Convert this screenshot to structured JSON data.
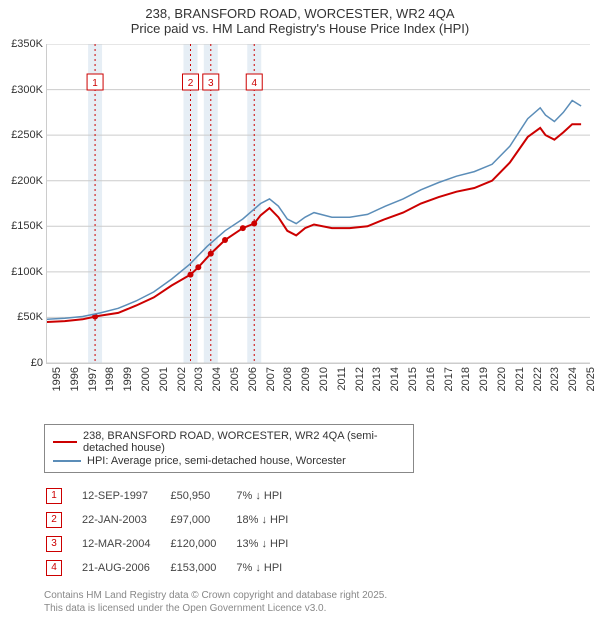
{
  "title": {
    "line1": "238, BRANSFORD ROAD, WORCESTER, WR2 4QA",
    "line2": "Price paid vs. HM Land Registry's House Price Index (HPI)"
  },
  "chart": {
    "type": "line",
    "background_color": "#ffffff",
    "grid_color": "#cccccc",
    "band_color": "#e6eef5",
    "marker_vline_color": "#cc0000",
    "marker_vline_dash": "2,3",
    "xlim": [
      1995,
      2025.5
    ],
    "ylim": [
      0,
      350000
    ],
    "ytick_step": 50000,
    "ytick_labels": [
      "£0",
      "£50K",
      "£100K",
      "£150K",
      "£200K",
      "£250K",
      "£300K",
      "£350K"
    ],
    "xticks": [
      1995,
      1996,
      1997,
      1998,
      1999,
      2000,
      2001,
      2002,
      2003,
      2004,
      2005,
      2006,
      2007,
      2008,
      2009,
      2010,
      2011,
      2012,
      2013,
      2014,
      2015,
      2016,
      2017,
      2018,
      2019,
      2020,
      2021,
      2022,
      2023,
      2024,
      2025
    ],
    "event_bands": [
      {
        "x": 1997.7,
        "label": "1"
      },
      {
        "x": 2003.06,
        "label": "2"
      },
      {
        "x": 2004.2,
        "label": "3"
      },
      {
        "x": 2006.64,
        "label": "4"
      }
    ],
    "series": [
      {
        "name": "price_paid",
        "label": "238, BRANSFORD ROAD, WORCESTER, WR2 4QA (semi-detached house)",
        "color": "#cc0000",
        "line_width": 2,
        "points": [
          [
            1995,
            45000
          ],
          [
            1996,
            46000
          ],
          [
            1997,
            48000
          ],
          [
            1997.7,
            50950
          ],
          [
            1998,
            52000
          ],
          [
            1999,
            55000
          ],
          [
            2000,
            63000
          ],
          [
            2001,
            72000
          ],
          [
            2002,
            85000
          ],
          [
            2003.06,
            97000
          ],
          [
            2003.5,
            105000
          ],
          [
            2004.2,
            120000
          ],
          [
            2005,
            135000
          ],
          [
            2006,
            148000
          ],
          [
            2006.64,
            153000
          ],
          [
            2007,
            162000
          ],
          [
            2007.5,
            170000
          ],
          [
            2008,
            160000
          ],
          [
            2008.5,
            145000
          ],
          [
            2009,
            140000
          ],
          [
            2009.5,
            148000
          ],
          [
            2010,
            152000
          ],
          [
            2011,
            148000
          ],
          [
            2012,
            148000
          ],
          [
            2013,
            150000
          ],
          [
            2014,
            158000
          ],
          [
            2015,
            165000
          ],
          [
            2016,
            175000
          ],
          [
            2017,
            182000
          ],
          [
            2018,
            188000
          ],
          [
            2019,
            192000
          ],
          [
            2020,
            200000
          ],
          [
            2021,
            220000
          ],
          [
            2022,
            248000
          ],
          [
            2022.7,
            258000
          ],
          [
            2023,
            250000
          ],
          [
            2023.5,
            245000
          ],
          [
            2024,
            253000
          ],
          [
            2024.5,
            262000
          ],
          [
            2025,
            262000
          ]
        ],
        "markers": [
          [
            1997.7,
            50950
          ],
          [
            2003.06,
            97000
          ],
          [
            2003.5,
            105000
          ],
          [
            2004.2,
            120000
          ],
          [
            2005,
            135000
          ],
          [
            2006,
            148000
          ],
          [
            2006.64,
            153000
          ]
        ]
      },
      {
        "name": "hpi",
        "label": "HPI: Average price, semi-detached house, Worcester",
        "color": "#5b8db8",
        "line_width": 1.5,
        "points": [
          [
            1995,
            48000
          ],
          [
            1996,
            49000
          ],
          [
            1997,
            51000
          ],
          [
            1998,
            55000
          ],
          [
            1999,
            60000
          ],
          [
            2000,
            68000
          ],
          [
            2001,
            78000
          ],
          [
            2002,
            92000
          ],
          [
            2003,
            108000
          ],
          [
            2004,
            128000
          ],
          [
            2005,
            145000
          ],
          [
            2006,
            158000
          ],
          [
            2007,
            175000
          ],
          [
            2007.5,
            180000
          ],
          [
            2008,
            172000
          ],
          [
            2008.5,
            158000
          ],
          [
            2009,
            153000
          ],
          [
            2009.5,
            160000
          ],
          [
            2010,
            165000
          ],
          [
            2011,
            160000
          ],
          [
            2012,
            160000
          ],
          [
            2013,
            163000
          ],
          [
            2014,
            172000
          ],
          [
            2015,
            180000
          ],
          [
            2016,
            190000
          ],
          [
            2017,
            198000
          ],
          [
            2018,
            205000
          ],
          [
            2019,
            210000
          ],
          [
            2020,
            218000
          ],
          [
            2021,
            238000
          ],
          [
            2022,
            268000
          ],
          [
            2022.7,
            280000
          ],
          [
            2023,
            272000
          ],
          [
            2023.5,
            265000
          ],
          [
            2024,
            275000
          ],
          [
            2024.5,
            288000
          ],
          [
            2025,
            282000
          ]
        ]
      }
    ]
  },
  "legend": {
    "rows": [
      {
        "color": "#cc0000",
        "width": 2,
        "label": "238, BRANSFORD ROAD, WORCESTER, WR2 4QA (semi-detached house)"
      },
      {
        "color": "#5b8db8",
        "width": 1.5,
        "label": "HPI: Average price, semi-detached house, Worcester"
      }
    ]
  },
  "events": {
    "marker_border": "#cc0000",
    "marker_text": "#cc0000",
    "rows": [
      {
        "n": "1",
        "date": "12-SEP-1997",
        "price": "£50,950",
        "delta": "7% ↓ HPI"
      },
      {
        "n": "2",
        "date": "22-JAN-2003",
        "price": "£97,000",
        "delta": "18% ↓ HPI"
      },
      {
        "n": "3",
        "date": "12-MAR-2004",
        "price": "£120,000",
        "delta": "13% ↓ HPI"
      },
      {
        "n": "4",
        "date": "21-AUG-2006",
        "price": "£153,000",
        "delta": "7% ↓ HPI"
      }
    ]
  },
  "attribution": {
    "line1": "Contains HM Land Registry data © Crown copyright and database right 2025.",
    "line2": "This data is licensed under the Open Government Licence v3.0."
  }
}
